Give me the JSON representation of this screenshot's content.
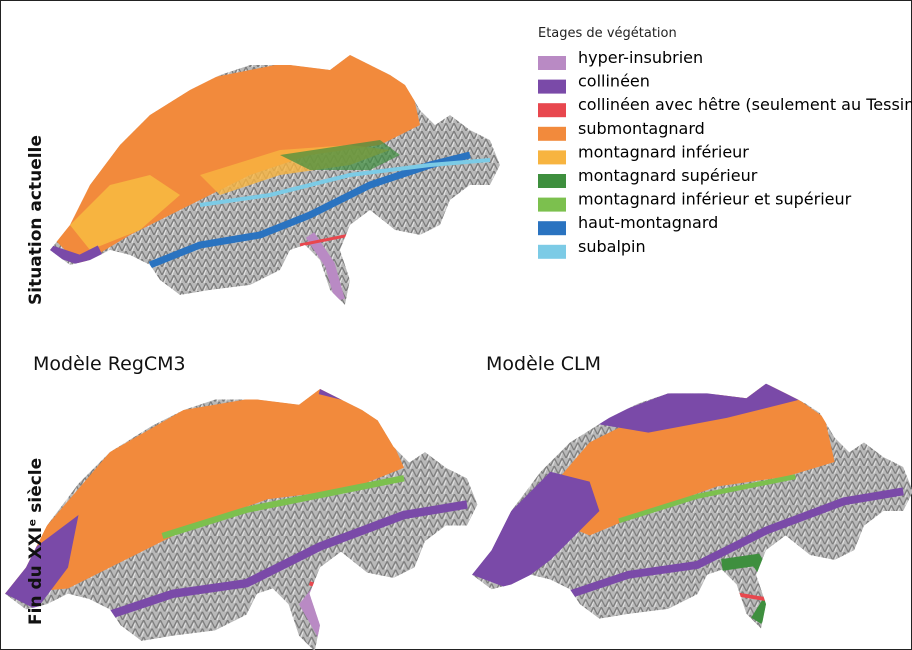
{
  "row_labels": [
    "Situation actuelle",
    "Fin du XXIᵉ siècle"
  ],
  "models": [
    "Modèle RegCM3",
    "Modèle CLM"
  ],
  "legend": {
    "title": "Etages de végétation",
    "items": [
      {
        "label": "hyper-insubrien",
        "color": "#b98ac4"
      },
      {
        "label": "collinéen",
        "color": "#7a4aa8"
      },
      {
        "label": "collinéen avec hêtre (seulement au Tessin)",
        "color": "#e8474e"
      },
      {
        "label": "submontagnard",
        "color": "#f28a3c"
      },
      {
        "label": "montagnard inférieur",
        "color": "#f7b440"
      },
      {
        "label": "montagnard supérieur",
        "color": "#3e8f3e"
      },
      {
        "label": "montagnard inférieur et supérieur",
        "color": "#7cc04e"
      },
      {
        "label": "haut-montagnard",
        "color": "#2a73c0"
      },
      {
        "label": "subalpin",
        "color": "#7ccbe6"
      }
    ]
  }
}
